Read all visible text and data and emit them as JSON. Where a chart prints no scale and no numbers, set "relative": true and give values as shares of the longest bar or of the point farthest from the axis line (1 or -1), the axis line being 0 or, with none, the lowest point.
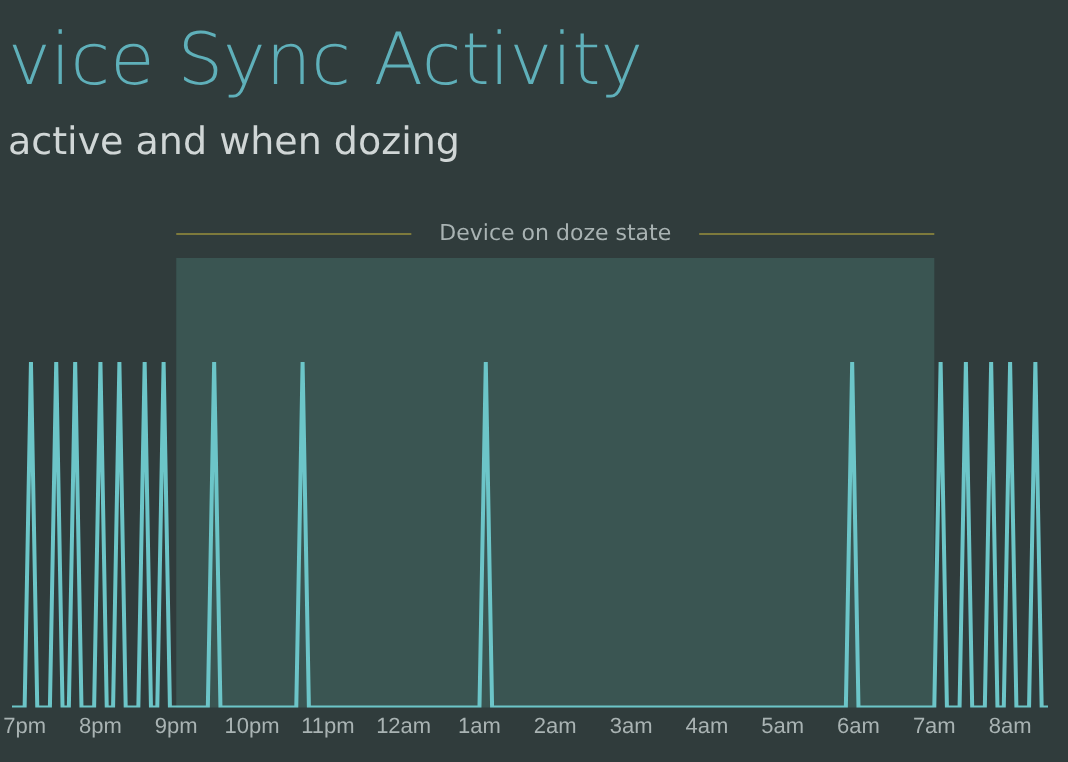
{
  "chart_data": {
    "type": "line",
    "title": "vice Sync Activity",
    "subtitle": "active and when dozing",
    "relative": true,
    "tick_labels": "x",
    "marker": "none",
    "line_style": "solid",
    "legend": false,
    "grid": false,
    "categories": [
      null,
      null,
      "7pm",
      null,
      null,
      null,
      null,
      null,
      null,
      null,
      null,
      null,
      null,
      null,
      "8pm",
      null,
      null,
      null,
      null,
      null,
      null,
      null,
      null,
      null,
      null,
      null,
      "9pm",
      null,
      null,
      null,
      null,
      null,
      null,
      null,
      null,
      null,
      null,
      null,
      "10pm",
      null,
      null,
      null,
      null,
      null,
      null,
      null,
      null,
      null,
      null,
      null,
      "11pm",
      null,
      null,
      null,
      null,
      null,
      null,
      null,
      null,
      null,
      null,
      null,
      "12am",
      null,
      null,
      null,
      null,
      null,
      null,
      null,
      null,
      null,
      null,
      null,
      "1am",
      null,
      null,
      null,
      null,
      null,
      null,
      null,
      null,
      null,
      null,
      null,
      "2am",
      null,
      null,
      null,
      null,
      null,
      null,
      null,
      null,
      null,
      null,
      null,
      "3am",
      null,
      null,
      null,
      null,
      null,
      null,
      null,
      null,
      null,
      null,
      null,
      "4am",
      null,
      null,
      null,
      null,
      null,
      null,
      null,
      null,
      null,
      null,
      null,
      "5am",
      null,
      null,
      null,
      null,
      null,
      null,
      null,
      null,
      null,
      null,
      null,
      "6am",
      null,
      null,
      null,
      null,
      null,
      null,
      null,
      null,
      null,
      null,
      null,
      "7am",
      null,
      null,
      null,
      null,
      null,
      null,
      null,
      null,
      null,
      null,
      null,
      "8am",
      null,
      null,
      null,
      null,
      null,
      null
    ],
    "bands": [
      {
        "axis": "x",
        "from": "9pm",
        "to": "7am",
        "label": "Device on doze state",
        "color": "#3a5552"
      }
    ],
    "series": [
      {
        "color": "#6cc5c8",
        "values": [
          0,
          0,
          0,
          1,
          0,
          0,
          0,
          1,
          0,
          0,
          1,
          0,
          0,
          0,
          1,
          0,
          0,
          1,
          0,
          0,
          0,
          1,
          0,
          0,
          1,
          0,
          0,
          0,
          0,
          0,
          0,
          0,
          1,
          0,
          0,
          0,
          0,
          0,
          0,
          0,
          0,
          0,
          0,
          0,
          0,
          0,
          1,
          0,
          0,
          0,
          0,
          0,
          0,
          0,
          0,
          0,
          0,
          0,
          0,
          0,
          0,
          0,
          0,
          0,
          0,
          0,
          0,
          0,
          0,
          0,
          0,
          0,
          0,
          0,
          0,
          1,
          0,
          0,
          0,
          0,
          0,
          0,
          0,
          0,
          0,
          0,
          0,
          0,
          0,
          0,
          0,
          0,
          0,
          0,
          0,
          0,
          0,
          0,
          0,
          0,
          0,
          0,
          0,
          0,
          0,
          0,
          0,
          0,
          0,
          0,
          0,
          0,
          0,
          0,
          0,
          0,
          0,
          0,
          0,
          0,
          0,
          0,
          0,
          0,
          0,
          0,
          0,
          0,
          0,
          0,
          0,
          0,
          0,
          1,
          0,
          0,
          0,
          0,
          0,
          0,
          0,
          0,
          0,
          0,
          0,
          0,
          0,
          1,
          0,
          0,
          0,
          1,
          0,
          0,
          0,
          1,
          0,
          0,
          1,
          0,
          0,
          0,
          1,
          0,
          0
        ]
      }
    ]
  }
}
